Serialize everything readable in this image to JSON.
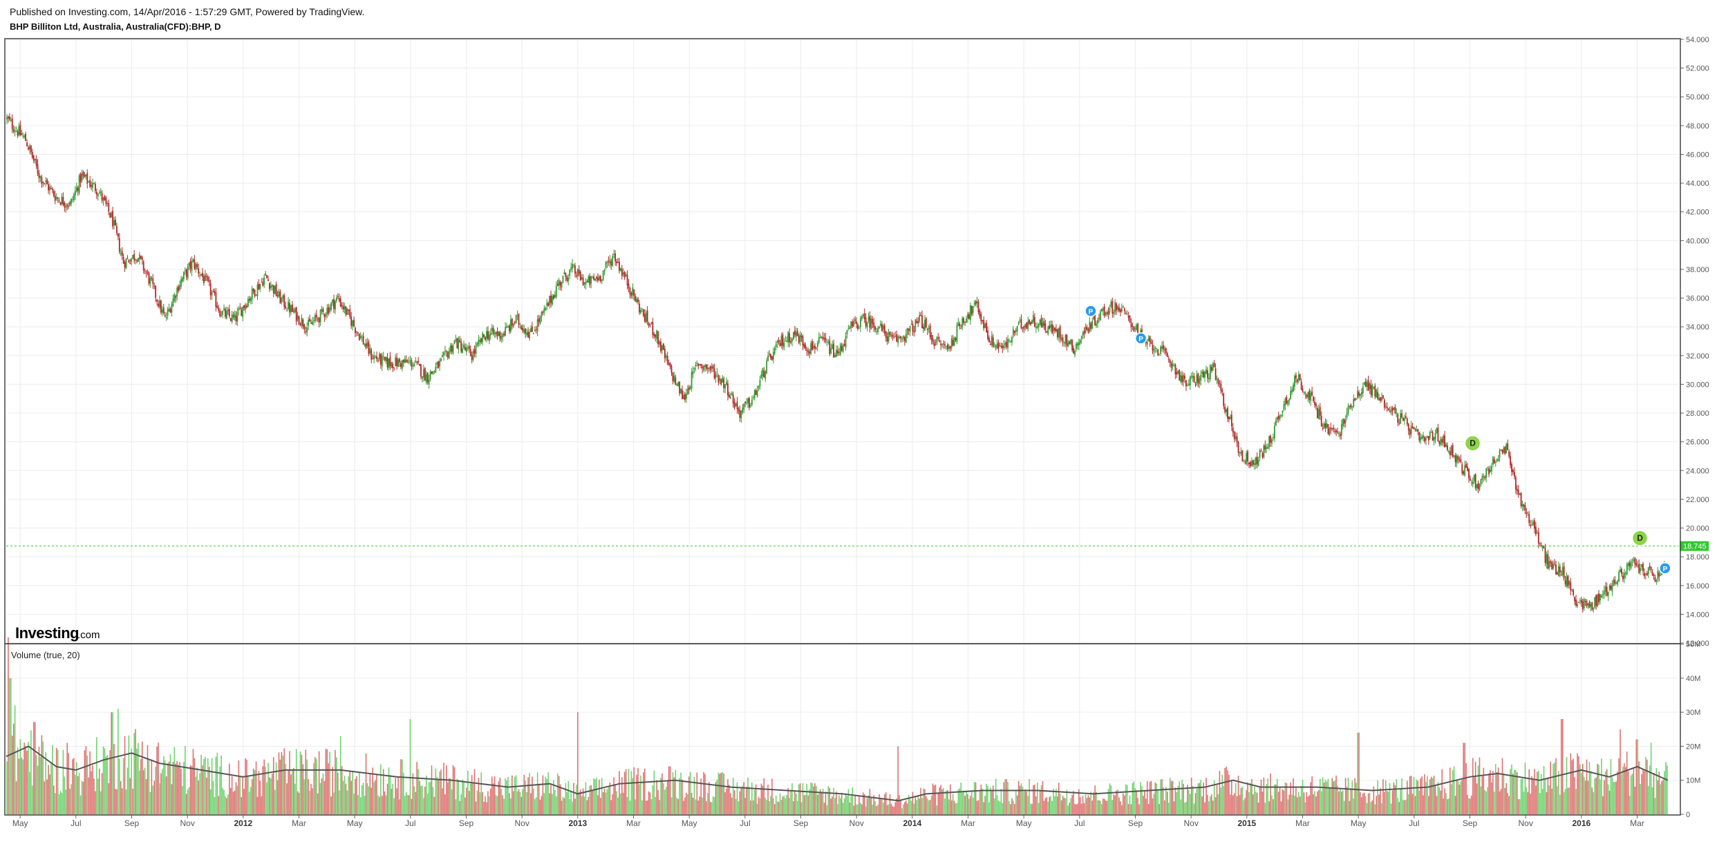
{
  "header": {
    "published": "Published on Investing.com, 14/Apr/2016 - 1:57:29 GMT, Powered by TradingView.",
    "symbol": "BHP Billiton Ltd, Australia, Australia(CFD):BHP, D"
  },
  "brand": {
    "name": "Investing",
    "suffix": ".com"
  },
  "price_label": "18.745",
  "volume_label": "Volume (true, 20)",
  "colors": {
    "up": "#2e9a2e",
    "down": "#b22222",
    "vol_up": "#6fd36f",
    "vol_down": "#e07070",
    "grid": "#ececec",
    "price_line": "#2fc92f",
    "badge_green": "#8cd44a",
    "badge_blue": "#2b9bea"
  },
  "chart_data": {
    "type": "candlestick",
    "price_axis": {
      "ylim": [
        12,
        54
      ],
      "ticks": [
        "12.000",
        "14.000",
        "16.000",
        "18.000",
        "20.000",
        "22.000",
        "24.000",
        "26.000",
        "28.000",
        "30.000",
        "32.000",
        "34.000",
        "36.000",
        "38.000",
        "40.000",
        "42.000",
        "44.000",
        "46.000",
        "48.000",
        "50.000",
        "52.000",
        "54.000"
      ]
    },
    "volume_axis": {
      "ylim": [
        0,
        55
      ],
      "unit": "M",
      "ticks": [
        "0",
        "10M",
        "20M",
        "30M",
        "40M",
        "50M"
      ]
    },
    "x_labels": [
      {
        "label": "May",
        "t": 0.5,
        "bold": false
      },
      {
        "label": "Jul",
        "t": 2.5,
        "bold": false
      },
      {
        "label": "Sep",
        "t": 4.5,
        "bold": false
      },
      {
        "label": "Nov",
        "t": 6.5,
        "bold": false
      },
      {
        "label": "2012",
        "t": 8.5,
        "bold": true
      },
      {
        "label": "Mar",
        "t": 10.5,
        "bold": false
      },
      {
        "label": "May",
        "t": 12.5,
        "bold": false
      },
      {
        "label": "Jul",
        "t": 14.5,
        "bold": false
      },
      {
        "label": "Sep",
        "t": 16.5,
        "bold": false
      },
      {
        "label": "Nov",
        "t": 18.5,
        "bold": false
      },
      {
        "label": "2013",
        "t": 20.5,
        "bold": true
      },
      {
        "label": "Mar",
        "t": 22.5,
        "bold": false
      },
      {
        "label": "May",
        "t": 24.5,
        "bold": false
      },
      {
        "label": "Jul",
        "t": 26.5,
        "bold": false
      },
      {
        "label": "Sep",
        "t": 28.5,
        "bold": false
      },
      {
        "label": "Nov",
        "t": 30.5,
        "bold": false
      },
      {
        "label": "2014",
        "t": 32.5,
        "bold": true
      },
      {
        "label": "Mar",
        "t": 34.5,
        "bold": false
      },
      {
        "label": "May",
        "t": 36.5,
        "bold": false
      },
      {
        "label": "Jul",
        "t": 38.5,
        "bold": false
      },
      {
        "label": "Sep",
        "t": 40.5,
        "bold": false
      },
      {
        "label": "Nov",
        "t": 42.5,
        "bold": false
      },
      {
        "label": "2015",
        "t": 44.5,
        "bold": true
      },
      {
        "label": "Mar",
        "t": 46.5,
        "bold": false
      },
      {
        "label": "May",
        "t": 48.5,
        "bold": false
      },
      {
        "label": "Jul",
        "t": 50.5,
        "bold": false
      },
      {
        "label": "Sep",
        "t": 52.5,
        "bold": false
      },
      {
        "label": "Nov",
        "t": 54.5,
        "bold": false
      },
      {
        "label": "2016",
        "t": 56.5,
        "bold": true
      },
      {
        "label": "Mar",
        "t": 58.5,
        "bold": false
      }
    ],
    "time_range": [
      0,
      60
    ],
    "price_path": [
      [
        0,
        48.5
      ],
      [
        0.7,
        47
      ],
      [
        1.2,
        44.5
      ],
      [
        1.8,
        43
      ],
      [
        2.3,
        42.5
      ],
      [
        2.7,
        44.5
      ],
      [
        3.3,
        43.5
      ],
      [
        3.8,
        41.5
      ],
      [
        4.2,
        38.5
      ],
      [
        4.7,
        39
      ],
      [
        5.2,
        37
      ],
      [
        5.7,
        34.5
      ],
      [
        6.2,
        37
      ],
      [
        6.7,
        38.5
      ],
      [
        7.2,
        37
      ],
      [
        7.7,
        35
      ],
      [
        8.2,
        34.5
      ],
      [
        8.7,
        36
      ],
      [
        9.3,
        37.5
      ],
      [
        9.8,
        36
      ],
      [
        10.3,
        35
      ],
      [
        10.8,
        34
      ],
      [
        11.4,
        35
      ],
      [
        11.9,
        36
      ],
      [
        12.5,
        34
      ],
      [
        13.1,
        32
      ],
      [
        13.6,
        31.5
      ],
      [
        14.1,
        31.5
      ],
      [
        14.6,
        31.5
      ],
      [
        15.1,
        30.5
      ],
      [
        15.6,
        31.5
      ],
      [
        16.1,
        33
      ],
      [
        16.7,
        32
      ],
      [
        17.2,
        33.5
      ],
      [
        17.8,
        33.5
      ],
      [
        18.3,
        34.5
      ],
      [
        18.8,
        33.5
      ],
      [
        19.3,
        35
      ],
      [
        19.8,
        37
      ],
      [
        20.3,
        38
      ],
      [
        20.8,
        37
      ],
      [
        21.3,
        37.5
      ],
      [
        21.8,
        39
      ],
      [
        22.3,
        37
      ],
      [
        22.8,
        35
      ],
      [
        23.3,
        33.5
      ],
      [
        23.8,
        31
      ],
      [
        24.3,
        29
      ],
      [
        24.8,
        31.5
      ],
      [
        25.3,
        31
      ],
      [
        25.8,
        30
      ],
      [
        26.3,
        28
      ],
      [
        26.8,
        29
      ],
      [
        27.3,
        31.5
      ],
      [
        27.8,
        33
      ],
      [
        28.3,
        33.5
      ],
      [
        28.8,
        32.5
      ],
      [
        29.3,
        33
      ],
      [
        29.8,
        32
      ],
      [
        30.3,
        34
      ],
      [
        30.8,
        34.5
      ],
      [
        31.3,
        34
      ],
      [
        31.8,
        33
      ],
      [
        32.3,
        33.5
      ],
      [
        32.8,
        34.5
      ],
      [
        33.3,
        33
      ],
      [
        33.8,
        32.5
      ],
      [
        34.3,
        34.5
      ],
      [
        34.8,
        35.5
      ],
      [
        35.3,
        33
      ],
      [
        35.8,
        32.5
      ],
      [
        36.3,
        34
      ],
      [
        36.8,
        34.5
      ],
      [
        37.3,
        34
      ],
      [
        37.8,
        33.5
      ],
      [
        38.3,
        32.5
      ],
      [
        38.8,
        34
      ],
      [
        39.3,
        35
      ],
      [
        39.8,
        35.5
      ],
      [
        40.3,
        34.5
      ],
      [
        40.8,
        33
      ],
      [
        41.3,
        32.5
      ],
      [
        41.8,
        31.5
      ],
      [
        42.3,
        30
      ],
      [
        42.8,
        30.5
      ],
      [
        43.3,
        31
      ],
      [
        43.8,
        28
      ],
      [
        44.3,
        25
      ],
      [
        44.8,
        24.5
      ],
      [
        45.3,
        26
      ],
      [
        45.8,
        28.5
      ],
      [
        46.3,
        30.5
      ],
      [
        46.8,
        29
      ],
      [
        47.3,
        27
      ],
      [
        47.8,
        26.5
      ],
      [
        48.3,
        29
      ],
      [
        48.8,
        30
      ],
      [
        49.3,
        29
      ],
      [
        49.8,
        28
      ],
      [
        50.3,
        27
      ],
      [
        50.8,
        26
      ],
      [
        51.3,
        26.5
      ],
      [
        51.8,
        25.5
      ],
      [
        52.3,
        24
      ],
      [
        52.8,
        23
      ],
      [
        53.3,
        24.5
      ],
      [
        53.8,
        25.5
      ],
      [
        54.3,
        22
      ],
      [
        54.8,
        20
      ],
      [
        55.3,
        17.5
      ],
      [
        55.8,
        17
      ],
      [
        56.3,
        15
      ],
      [
        56.8,
        14.5
      ],
      [
        57.3,
        15.5
      ],
      [
        57.8,
        16.5
      ],
      [
        58.3,
        17.5
      ],
      [
        58.8,
        17
      ],
      [
        59.2,
        16.5
      ],
      [
        59.6,
        17.5
      ]
    ],
    "volume_ma_path": [
      [
        0,
        17
      ],
      [
        0.8,
        20
      ],
      [
        1.8,
        14
      ],
      [
        2.5,
        13
      ],
      [
        3.5,
        16
      ],
      [
        4.5,
        18
      ],
      [
        5.5,
        15
      ],
      [
        7,
        13
      ],
      [
        8.5,
        11
      ],
      [
        10,
        13
      ],
      [
        12,
        13
      ],
      [
        14,
        11
      ],
      [
        16,
        10
      ],
      [
        18,
        8
      ],
      [
        19.5,
        9
      ],
      [
        20.5,
        6
      ],
      [
        22,
        9
      ],
      [
        24,
        10
      ],
      [
        26,
        8
      ],
      [
        28,
        7
      ],
      [
        30,
        6
      ],
      [
        32,
        4
      ],
      [
        33,
        6
      ],
      [
        35,
        7
      ],
      [
        37,
        7
      ],
      [
        39,
        6
      ],
      [
        41,
        7
      ],
      [
        43,
        8
      ],
      [
        44,
        10
      ],
      [
        45,
        8
      ],
      [
        47,
        8
      ],
      [
        49,
        7
      ],
      [
        51,
        8
      ],
      [
        52.5,
        11
      ],
      [
        53.5,
        12
      ],
      [
        55,
        10
      ],
      [
        56.5,
        13
      ],
      [
        57.5,
        11
      ],
      [
        58.5,
        14
      ],
      [
        59.6,
        10
      ]
    ],
    "volume_spikes": [
      [
        0.1,
        52
      ],
      [
        0.15,
        40
      ],
      [
        0.3,
        32
      ],
      [
        2.2,
        21
      ],
      [
        3.8,
        30
      ],
      [
        4,
        31
      ],
      [
        12,
        23
      ],
      [
        14.5,
        28
      ],
      [
        20.5,
        30
      ],
      [
        32,
        20
      ],
      [
        48.5,
        24
      ],
      [
        52.3,
        21
      ],
      [
        55.8,
        28
      ],
      [
        57.9,
        25
      ],
      [
        58.5,
        22
      ],
      [
        59,
        21
      ]
    ],
    "events": [
      {
        "type": "P",
        "t": 38.9,
        "price": 35.1,
        "color": "blue"
      },
      {
        "type": "P",
        "t": 40.7,
        "price": 33.2,
        "color": "blue"
      },
      {
        "type": "D",
        "t": 52.6,
        "price": 25.9,
        "color": "green"
      },
      {
        "type": "D",
        "t": 58.6,
        "price": 19.3,
        "color": "green"
      },
      {
        "type": "P",
        "t": 59.5,
        "price": 17.2,
        "color": "blue"
      }
    ],
    "current_price": 18.745
  }
}
